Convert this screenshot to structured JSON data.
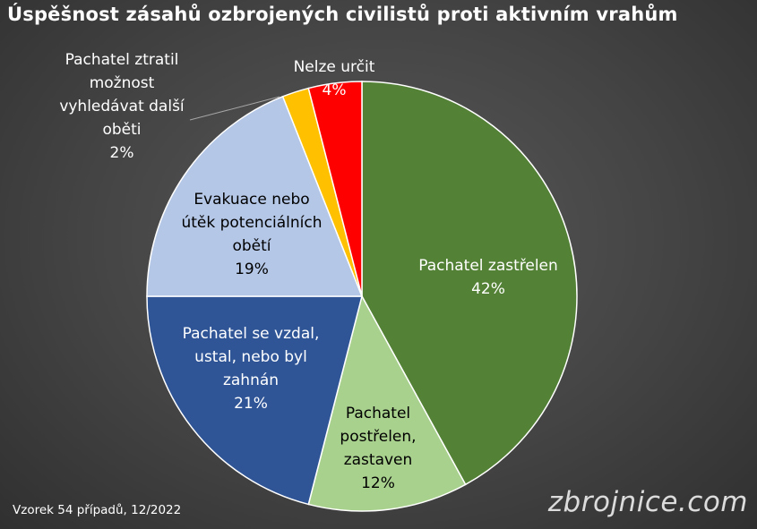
{
  "chart_data": {
    "type": "pie",
    "title": "Úspěšnost zásahů ozbrojených civilistů proti aktivním vrahům",
    "slices": [
      {
        "label": [
          "Pachatel zastřelen"
        ],
        "value": 42,
        "value_label": "42%",
        "color": "#538135",
        "label_color": "#ffffff"
      },
      {
        "label": [
          "Pachatel",
          "postřelen,",
          "zastaven"
        ],
        "value": 12,
        "value_label": "12%",
        "color": "#a9d18e",
        "label_color": "#000000"
      },
      {
        "label": [
          "Pachatel se vzdal,",
          "ustal, nebo byl",
          "zahnán"
        ],
        "value": 21,
        "value_label": "21%",
        "color": "#2f5597",
        "label_color": "#ffffff"
      },
      {
        "label": [
          "Evakuace nebo",
          "útěk potenciálních",
          "obětí"
        ],
        "value": 19,
        "value_label": "19%",
        "color": "#b4c7e7",
        "label_color": "#000000"
      },
      {
        "label": [
          "Pachatel ztratil",
          "možnost",
          "vyhledávat další",
          "oběti"
        ],
        "value": 2,
        "value_label": "2%",
        "color": "#ffc000",
        "label_color": "#ffffff"
      },
      {
        "label": [
          "Nelze určit"
        ],
        "value": 4,
        "value_label": "4%",
        "color": "#ff0000",
        "label_color": "#ffffff"
      }
    ]
  },
  "footnote": "Vzorek 54 případů, 12/2022",
  "watermark": "zbrojnice.com"
}
